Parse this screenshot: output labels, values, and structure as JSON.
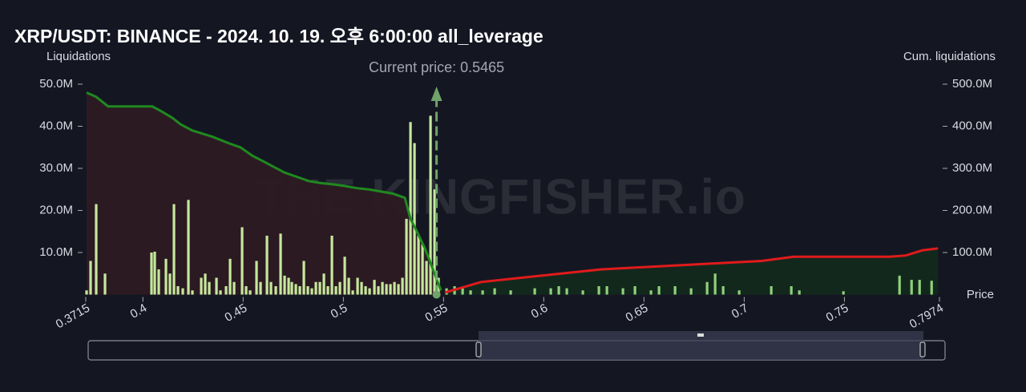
{
  "chart_data": {
    "type": "bar",
    "title": "XRP/USDT: BINANCE - 2024. 10. 19. 오후 6:00:00 all_leverage",
    "y_label": "Liquidations",
    "y2_label": "Cum. liquidations",
    "x_label": "Price",
    "watermark": "THE KINGFISHER.io",
    "current_price": 0.5465,
    "current_price_label": "Current price: 0.5465",
    "current_price_color": "#6fa36a",
    "xlim": [
      0.3715,
      0.7974
    ],
    "xticks": [
      0.3715,
      0.4,
      0.45,
      0.5,
      0.55,
      0.6,
      0.65,
      0.7,
      0.75,
      0.7974
    ],
    "ylim": [
      0,
      50
    ],
    "yticks": [
      {
        "value": 10,
        "label": "10.0M"
      },
      {
        "value": 20,
        "label": "20.0M"
      },
      {
        "value": 30,
        "label": "30.0M"
      },
      {
        "value": 40,
        "label": "40.0M"
      },
      {
        "value": 50,
        "label": "50.0M"
      }
    ],
    "y2lim": [
      0,
      500
    ],
    "y2ticks": [
      {
        "value": 100,
        "label": "100.0M"
      },
      {
        "value": 200,
        "label": "200.0M"
      },
      {
        "value": 300,
        "label": "300.0M"
      },
      {
        "value": 400,
        "label": "400.0M"
      },
      {
        "value": 500,
        "label": "500.0M"
      }
    ],
    "series": [
      {
        "color": "#c6e89c",
        "x": [
          0.3719,
          0.3739,
          0.3767,
          0.3811,
          0.4043,
          0.4059,
          0.4079,
          0.4115,
          0.4135,
          0.4155,
          0.4175,
          0.4199,
          0.4227,
          0.4247,
          0.4291,
          0.4311,
          0.4331,
          0.4367,
          0.4387,
          0.4415,
          0.4435,
          0.4455,
          0.4495,
          0.4515,
          0.4535,
          0.4567,
          0.4587,
          0.4619,
          0.4639,
          0.4663,
          0.4687,
          0.4707,
          0.4727,
          0.4743,
          0.4763,
          0.4783,
          0.4803,
          0.4823,
          0.4843,
          0.4863,
          0.4883,
          0.4903,
          0.4923,
          0.4943,
          0.4963,
          0.4983,
          0.5007,
          0.5027,
          0.5047,
          0.5071,
          0.5091,
          0.5111,
          0.5131,
          0.5155,
          0.5175,
          0.5195,
          0.5215,
          0.5235,
          0.5255,
          0.5275,
          0.5295,
          0.5315,
          0.5335,
          0.5355,
          0.5375,
          0.5395,
          0.5415,
          0.5435,
          0.5455,
          0.5475
        ],
        "values": [
          1,
          8,
          21.5,
          5,
          10,
          10.2,
          6,
          8.5,
          5,
          21.5,
          2,
          1.5,
          22.5,
          1,
          4,
          5,
          3,
          4,
          1,
          2,
          8.5,
          3,
          16,
          2,
          1,
          8,
          3,
          14,
          3,
          2,
          14.5,
          4.5,
          4,
          3,
          2.5,
          2,
          8,
          2,
          1.5,
          3,
          3,
          5,
          2,
          14,
          2,
          3,
          9,
          4,
          1,
          4,
          3,
          2,
          1.5,
          3.5,
          2,
          3,
          2.5,
          2.5,
          3,
          2.5,
          4,
          18,
          41,
          36,
          14,
          12,
          8,
          42.5,
          25,
          4
        ]
      },
      {
        "color": "#8fd07a",
        "x": [
          0.5515,
          0.5555,
          0.5595,
          0.5635,
          0.5695,
          0.5755,
          0.5835,
          0.5955,
          0.6035,
          0.6075,
          0.6115,
          0.6195,
          0.6275,
          0.6315,
          0.6395,
          0.6455,
          0.6535,
          0.6575,
          0.6655,
          0.6735,
          0.6815,
          0.6855,
          0.6895,
          0.6975,
          0.7135,
          0.7235,
          0.7275,
          0.7495,
          0.7775,
          0.7835,
          0.7875,
          0.7935
        ],
        "values": [
          1.5,
          2,
          1.5,
          1,
          1,
          1.5,
          1,
          1.5,
          1.5,
          2,
          1.5,
          1,
          2,
          2,
          1.5,
          2,
          1,
          2,
          2,
          1.5,
          3,
          5,
          2,
          1,
          2,
          2,
          1,
          0.8,
          4.5,
          3.5,
          3.5,
          3.3
        ]
      }
    ],
    "cumulative": [
      {
        "axis": "y2",
        "color": "#1f8a1f",
        "fill": "#2d1a24",
        "x": [
          0.3719,
          0.3767,
          0.3827,
          0.4047,
          0.4087,
          0.4147,
          0.4187,
          0.4247,
          0.4347,
          0.4427,
          0.4487,
          0.4547,
          0.4607,
          0.4647,
          0.4707,
          0.4767,
          0.4827,
          0.4887,
          0.4947,
          0.5007,
          0.5067,
          0.5127,
          0.5187,
          0.5247,
          0.5307,
          0.5335,
          0.5367,
          0.5407,
          0.5447,
          0.5487
        ],
        "values": [
          480,
          470,
          447,
          447,
          437,
          420,
          405,
          390,
          375,
          360,
          350,
          330,
          315,
          305,
          290,
          280,
          270,
          265,
          262,
          258,
          253,
          250,
          245,
          240,
          230,
          180,
          150,
          110,
          60,
          10
        ]
      },
      {
        "axis": "y2",
        "color": "#e01b1b",
        "fill": "#13291d",
        "x": [
          0.5507,
          0.5687,
          0.5887,
          0.6087,
          0.6287,
          0.6487,
          0.6687,
          0.6887,
          0.7087,
          0.7247,
          0.7487,
          0.7727,
          0.7807,
          0.7887,
          0.7967
        ],
        "values": [
          5,
          30,
          40,
          50,
          60,
          65,
          70,
          75,
          80,
          90,
          90,
          90,
          93,
          105,
          110
        ]
      }
    ]
  }
}
